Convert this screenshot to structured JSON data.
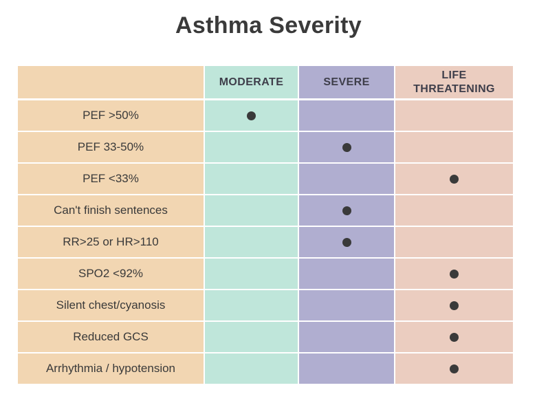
{
  "title": "Asthma Severity",
  "columns": [
    "",
    "MODERATE",
    "SEVERE",
    "LIFE\nTHREATENING"
  ],
  "rows": [
    {
      "label": "PEF >50%",
      "marks": [
        true,
        false,
        false
      ]
    },
    {
      "label": "PEF 33-50%",
      "marks": [
        false,
        true,
        false
      ]
    },
    {
      "label": "PEF <33%",
      "marks": [
        false,
        false,
        true
      ]
    },
    {
      "label": "Can't finish sentences",
      "marks": [
        false,
        true,
        false
      ]
    },
    {
      "label": "RR>25 or HR>110",
      "marks": [
        false,
        true,
        false
      ]
    },
    {
      "label": "SPO2 <92%",
      "marks": [
        false,
        false,
        true
      ]
    },
    {
      "label": "Silent chest/cyanosis",
      "marks": [
        false,
        false,
        true
      ]
    },
    {
      "label": "Reduced GCS",
      "marks": [
        false,
        false,
        true
      ]
    },
    {
      "label": "Arrhythmia / hypotension",
      "marks": [
        false,
        false,
        true
      ]
    }
  ],
  "colors": {
    "label_column": "#f2d6b2",
    "moderate": "#bfe6da",
    "severe": "#b0aed0",
    "life_threatening": "#ebcdc0",
    "dot": "#3a3a3a"
  },
  "icons": {
    "mark": "filled-circle"
  }
}
